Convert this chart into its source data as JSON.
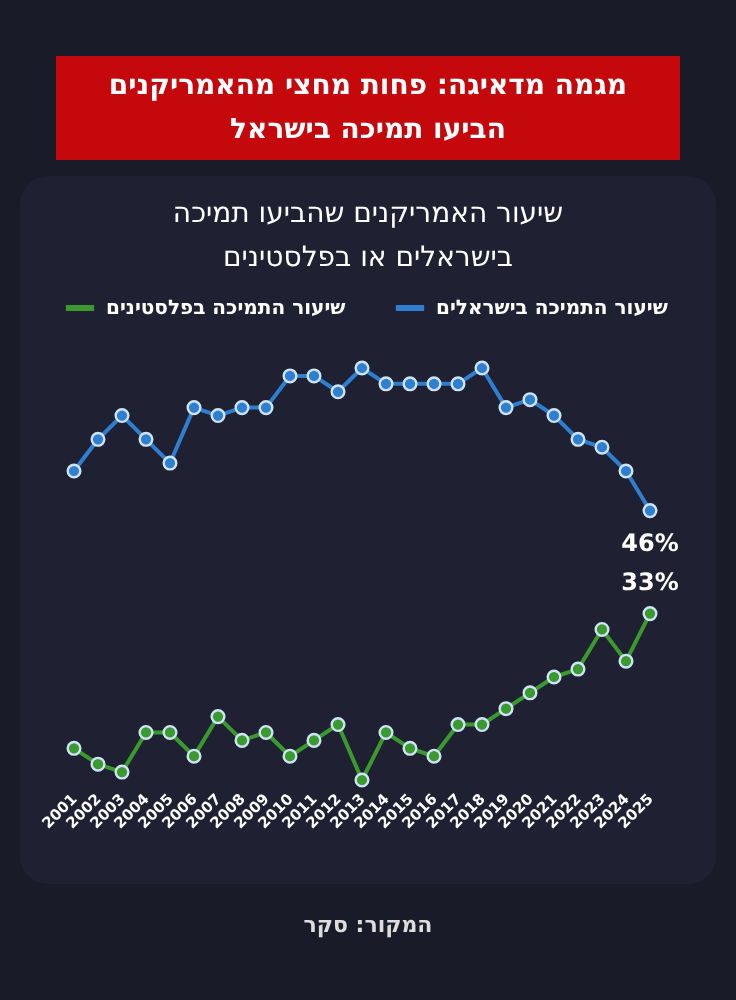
{
  "chart_data": {
    "type": "line",
    "title": "מגמה מדאיגה: פחות מחצי מהאמריקנים הביעו תמיכה בישראל",
    "subtitle": "שיעור האמריקנים שהביעו תמיכה בישראלים או בפלסטינים",
    "categories": [
      "2001",
      "2002",
      "2003",
      "2004",
      "2005",
      "2006",
      "2007",
      "2008",
      "2009",
      "2010",
      "2011",
      "2012",
      "2013",
      "2014",
      "2015",
      "2016",
      "2017",
      "2018",
      "2019",
      "2020",
      "2021",
      "2022",
      "2023",
      "2024",
      "2025"
    ],
    "series": [
      {
        "name": "שיעור התמיכה בישראלים",
        "color": "#2f7fd0",
        "values": [
          51,
          55,
          58,
          55,
          52,
          59,
          58,
          59,
          59,
          63,
          63,
          61,
          64,
          62,
          62,
          62,
          62,
          64,
          59,
          60,
          58,
          55,
          54,
          51,
          46
        ],
        "value_labels": [
          null,
          null,
          null,
          null,
          null,
          null,
          null,
          null,
          null,
          null,
          null,
          null,
          null,
          null,
          null,
          null,
          null,
          null,
          null,
          null,
          null,
          null,
          null,
          null,
          "46%"
        ]
      },
      {
        "name": "שיעור התמיכה בפלסטינים",
        "color": "#3a9a2e",
        "values": [
          16,
          14,
          13,
          18,
          18,
          15,
          20,
          17,
          18,
          15,
          17,
          19,
          12,
          18,
          16,
          15,
          19,
          19,
          21,
          23,
          25,
          26,
          31,
          27,
          33
        ],
        "value_labels": [
          null,
          null,
          null,
          null,
          null,
          null,
          null,
          null,
          null,
          null,
          null,
          null,
          null,
          null,
          null,
          null,
          null,
          null,
          null,
          null,
          null,
          null,
          null,
          null,
          "33%"
        ]
      }
    ],
    "tick_labels": "x",
    "grid": false,
    "legend": "top",
    "marker": "circle",
    "line_style": "solid",
    "annotations": [
      "המקור: סקר"
    ]
  }
}
